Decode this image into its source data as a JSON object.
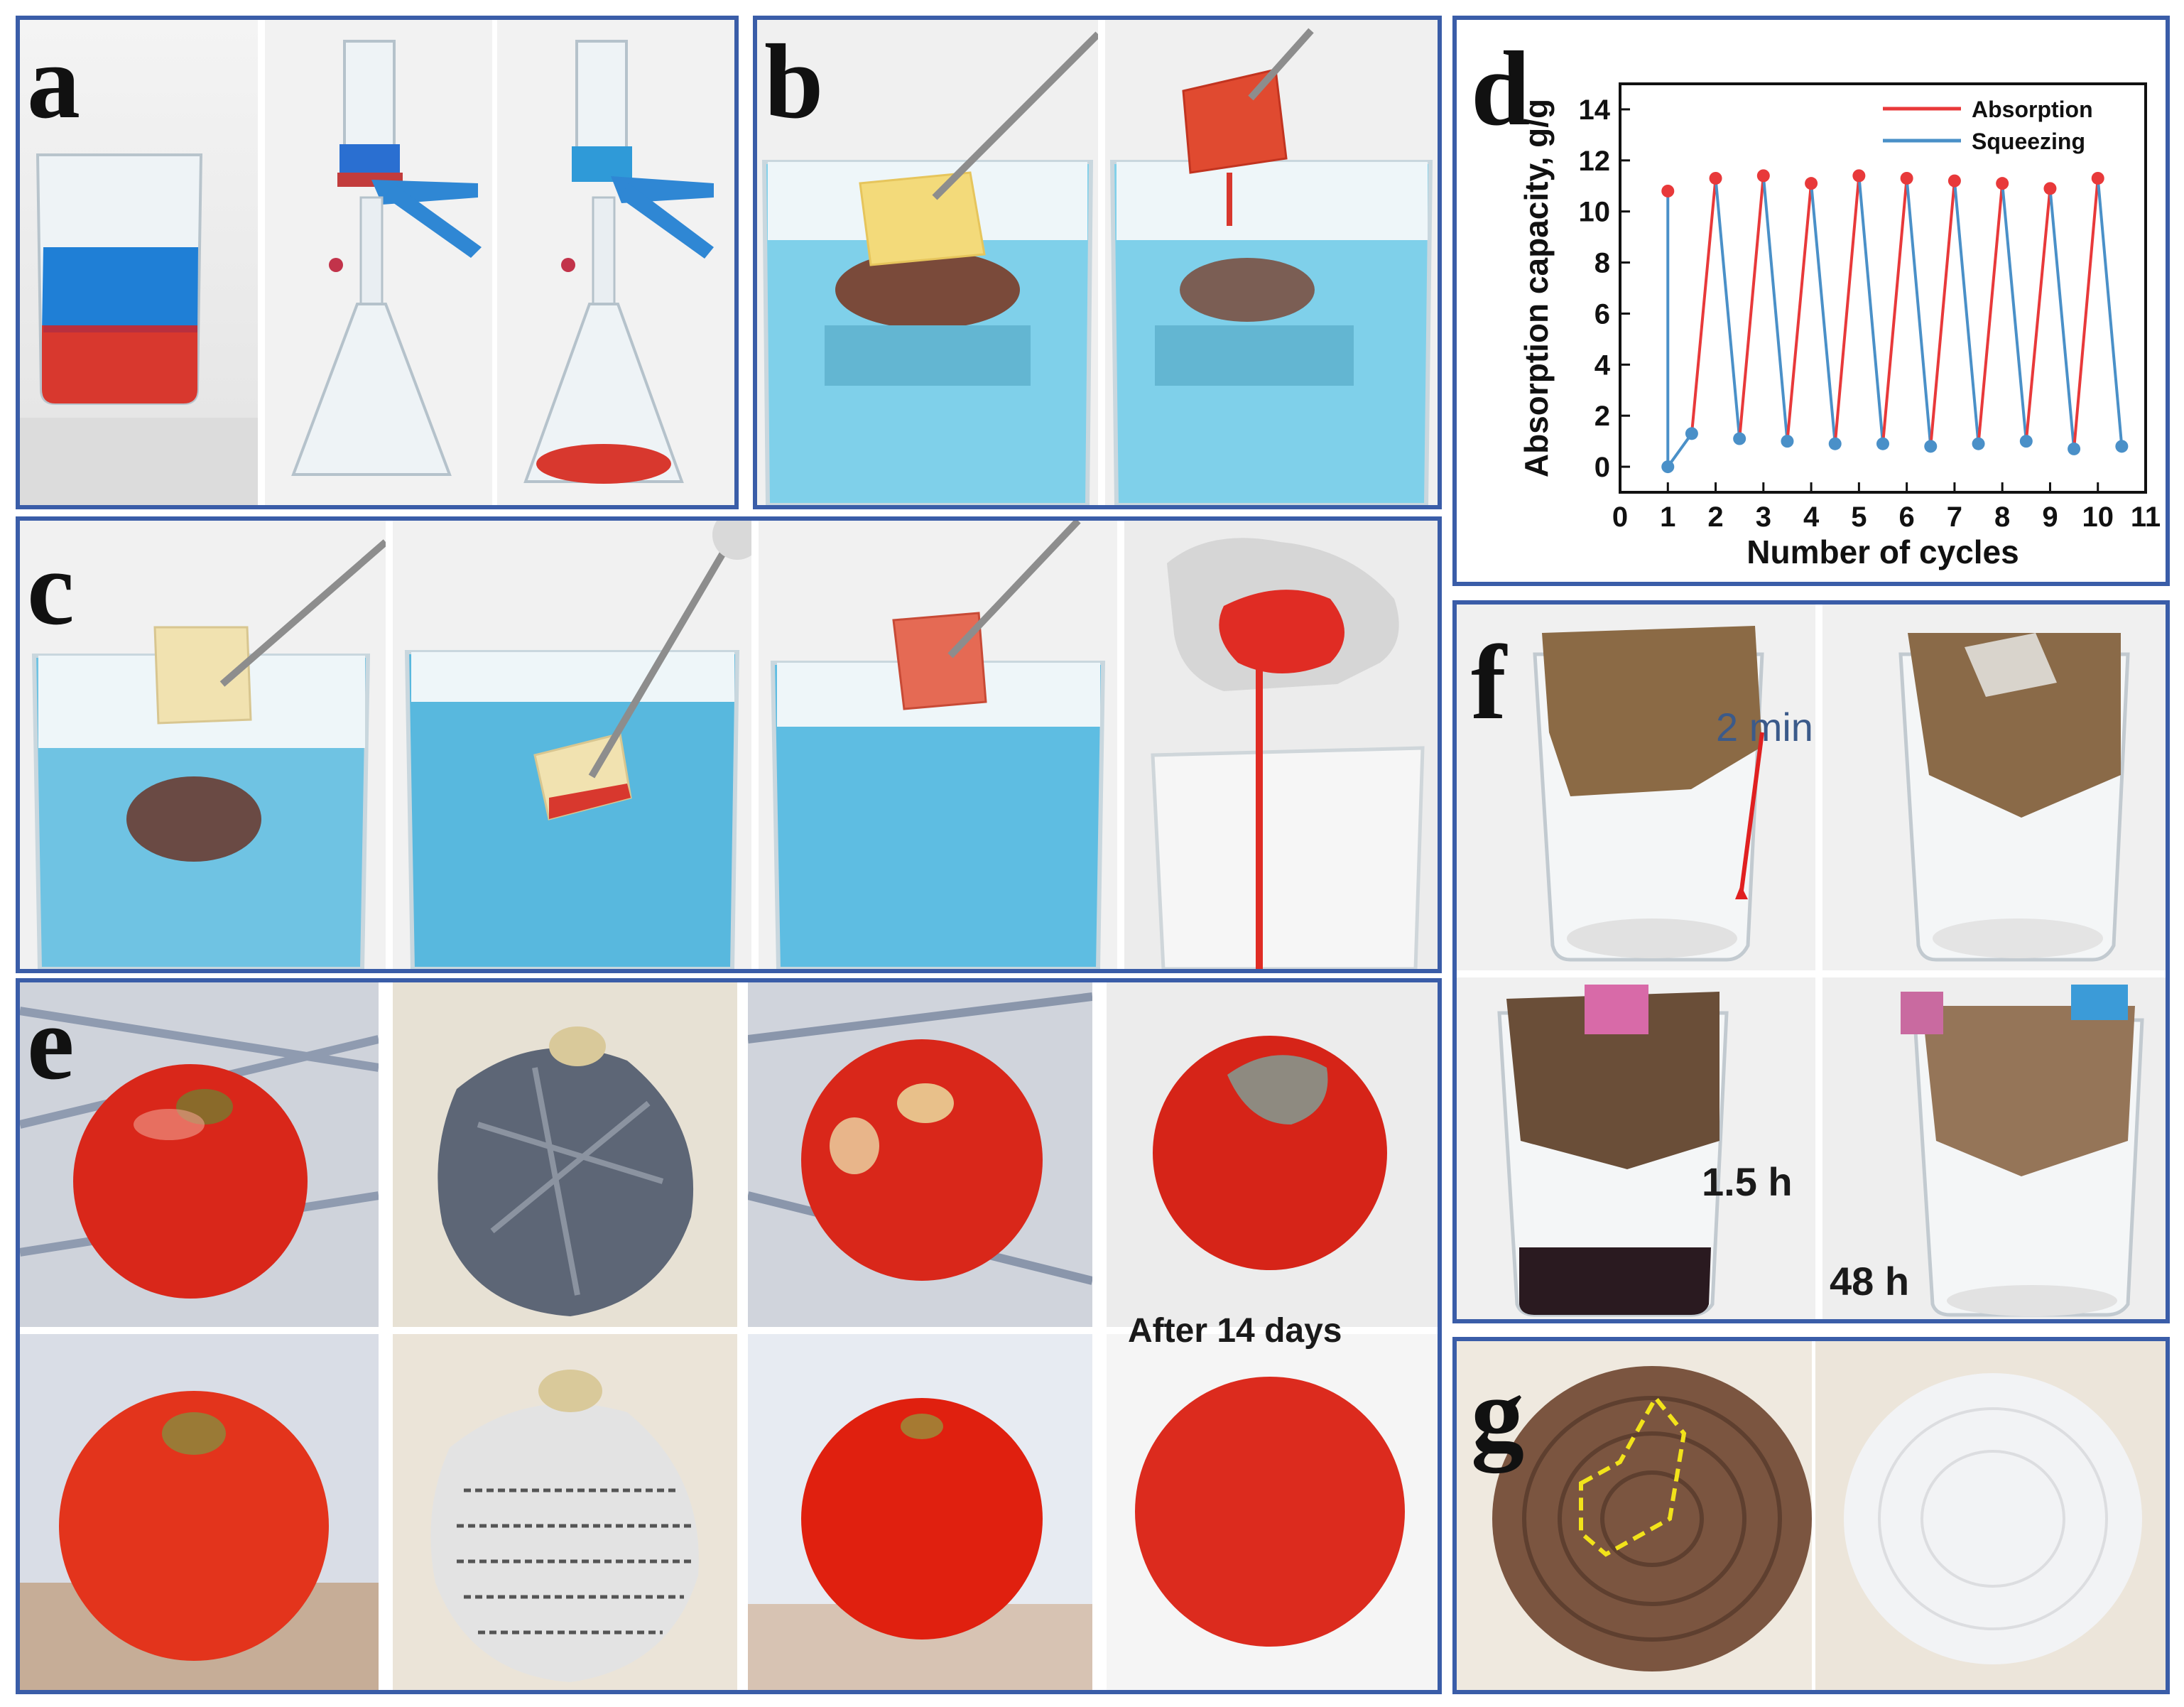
{
  "panels": {
    "a": "a",
    "b": "b",
    "c": "c",
    "d": "d",
    "e": "e",
    "f": "f",
    "g": "g"
  },
  "annotations": {
    "f_time_1": "2 min",
    "f_time_2": "1.5 h",
    "f_time_3": "48 h",
    "e_caption": "After 14 days"
  },
  "colors": {
    "frame": "#3a5da8",
    "water_blue": "#4fb2d6",
    "red_liquid": "#d8382e",
    "absorption": "#e8393a",
    "squeezing": "#4a90c8",
    "tomato": "#d9271a"
  },
  "icons": [
    "beaker",
    "filter-flask",
    "tweezers",
    "sponge",
    "tomato",
    "newspaper-wrap",
    "paper-filter",
    "wood-disk"
  ],
  "chart_data": {
    "type": "line",
    "xlabel": "Number of cycles",
    "ylabel": "Absorption capacity, g/g",
    "xlim": [
      0,
      11
    ],
    "ylim": [
      -1,
      15
    ],
    "xticks": [
      0,
      1,
      2,
      3,
      4,
      5,
      6,
      7,
      8,
      9,
      10,
      11
    ],
    "yticks": [
      0,
      2,
      4,
      6,
      8,
      10,
      12,
      14
    ],
    "legend_position": "top-right",
    "grid": false,
    "series": [
      {
        "name": "Absorption",
        "color": "#e8393a",
        "x": [
          1,
          2,
          3,
          4,
          5,
          6,
          7,
          8,
          9,
          10
        ],
        "y": [
          10.8,
          11.3,
          11.4,
          11.1,
          11.4,
          11.3,
          11.2,
          11.1,
          10.9,
          11.3
        ]
      },
      {
        "name": "Squeezing",
        "color": "#4a90c8",
        "x": [
          1,
          1.5,
          2.5,
          3.5,
          4.5,
          5.5,
          6.5,
          7.5,
          8.5,
          9.5,
          10.5
        ],
        "y": [
          0,
          1.3,
          1.1,
          1.0,
          0.9,
          0.9,
          0.8,
          0.9,
          1.0,
          0.7,
          0.8
        ]
      }
    ]
  }
}
